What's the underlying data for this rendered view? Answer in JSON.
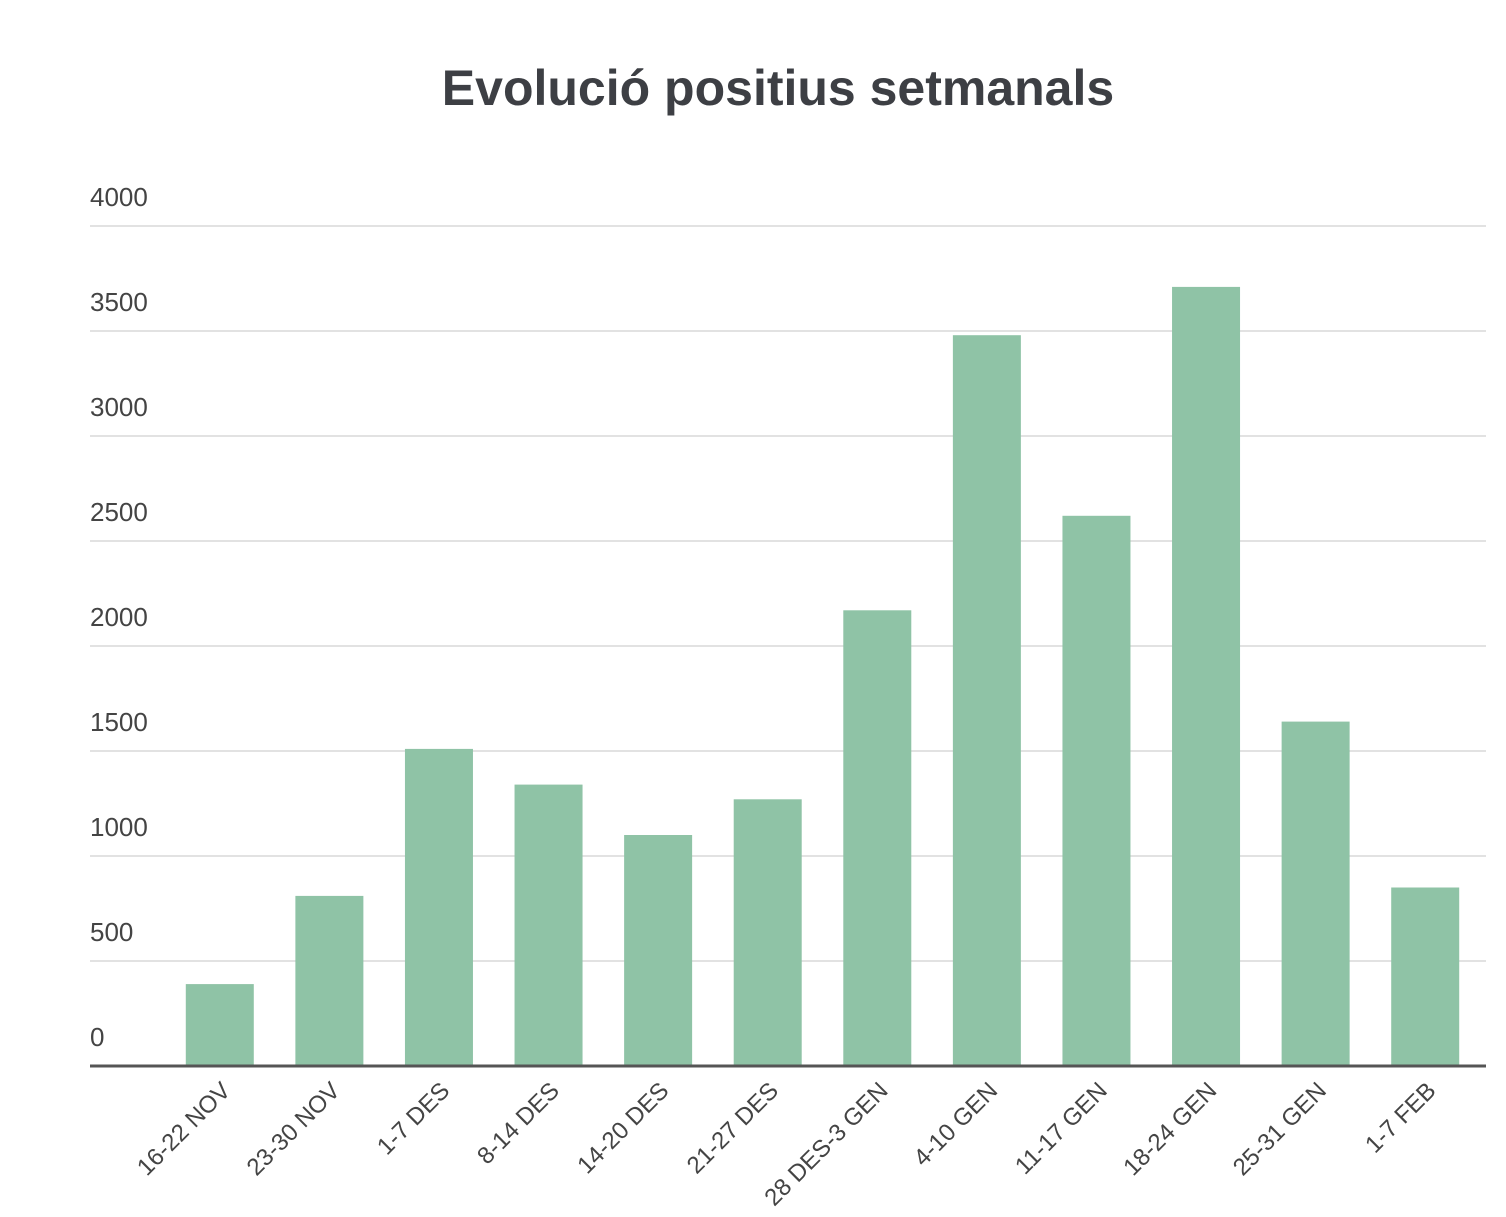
{
  "chart_data": {
    "type": "bar",
    "title": "Evolució positius setmanals",
    "categories": [
      "16-22 NOV",
      "23-30 NOV",
      "1-7 DES",
      "8-14 DES",
      "14-20 DES",
      "21-27 DES",
      "28 DES-3 GEN",
      "4-10 GEN",
      "11-17 GEN",
      "18-24 GEN",
      "25-31 GEN",
      "1-7 FEB"
    ],
    "values": [
      390,
      810,
      1510,
      1340,
      1100,
      1270,
      2170,
      3480,
      2620,
      3710,
      1640,
      850
    ],
    "color": "#8fc3a6",
    "ylim": [
      0,
      4000
    ],
    "yticks": [
      0,
      500,
      1000,
      1500,
      2000,
      2500,
      3000,
      3500,
      4000
    ],
    "grid": true
  }
}
